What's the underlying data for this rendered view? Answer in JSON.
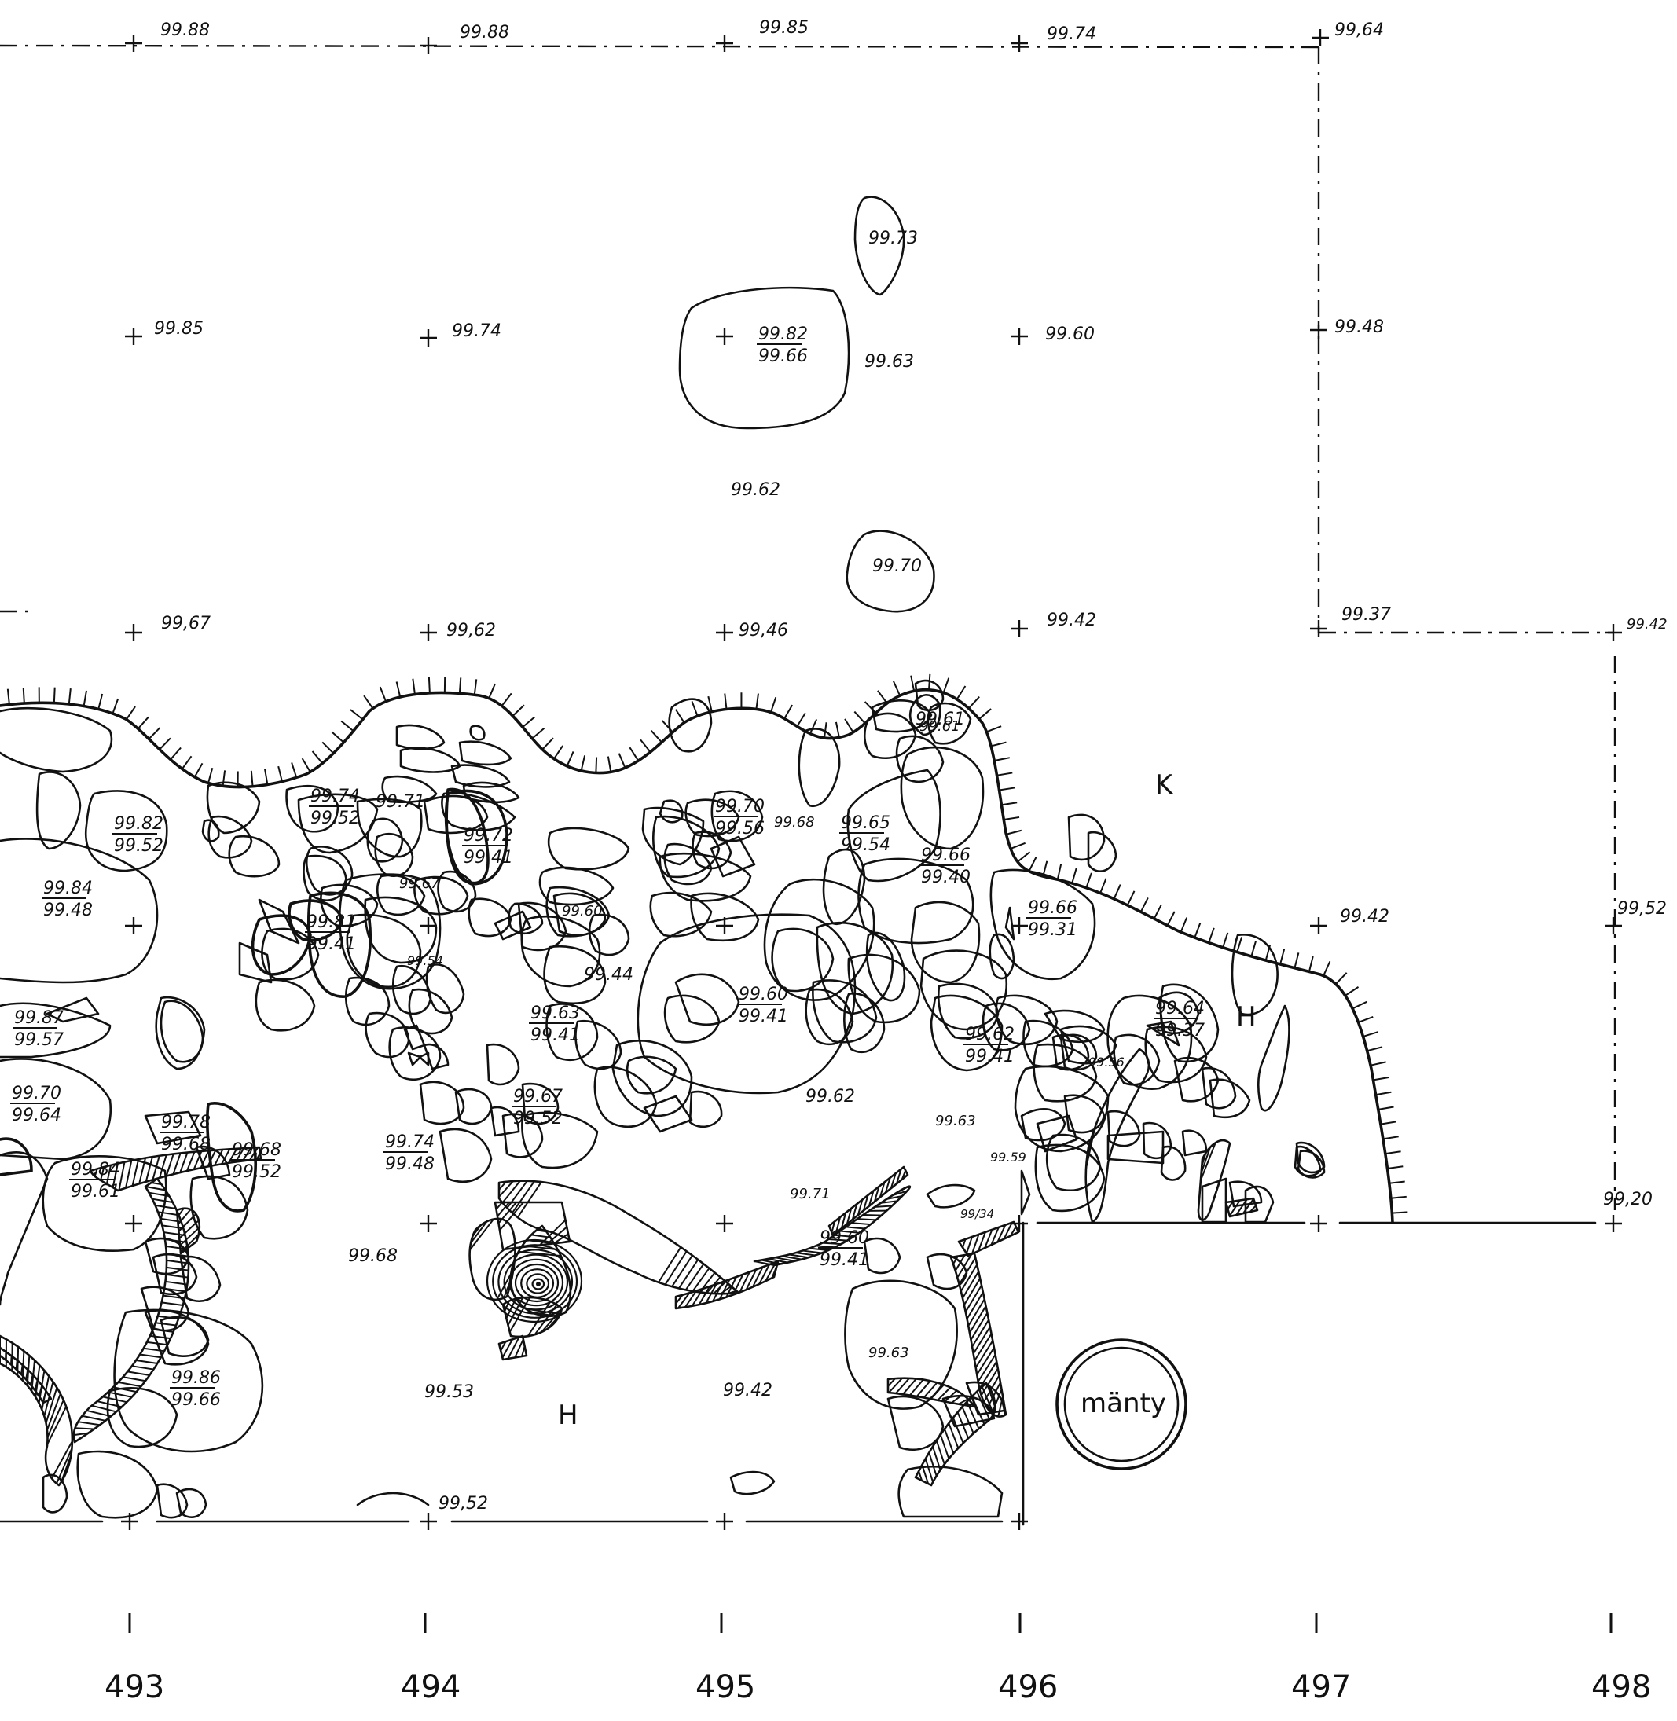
{
  "axis_labels": [
    "493",
    "494",
    "495",
    "496",
    "497",
    "498"
  ],
  "area_labels": {
    "K": "K",
    "H_right": "H",
    "H_bottom": "H",
    "tree": "mänty"
  },
  "top_row": [
    "99.88",
    "99.88",
    "99.85",
    "99.74",
    "99,64"
  ],
  "row2": [
    "99.85",
    "99.74",
    "99.60",
    "99.48"
  ],
  "row3": [
    "99,67",
    "99,62",
    "99,46",
    "99.42",
    "99.37",
    "99.42"
  ],
  "row4": [
    "99.42",
    "99,52"
  ],
  "row5": [
    "99,20"
  ],
  "surface": [
    "99.63",
    "99.62",
    "99.44",
    "99.54",
    "99.53",
    "99.42",
    "99,52",
    "99.56",
    "99.63",
    "99.59",
    "99.63",
    "99.68",
    "99.67",
    "99.61",
    "99.60",
    "99.68",
    "99.71",
    "99.62",
    "99/34"
  ],
  "stones": [
    {
      "top": "99.73"
    },
    {
      "top": "99.82",
      "bottom": "99.66"
    },
    {
      "top": "99.70"
    },
    {
      "top": "99.82",
      "bottom": "99.52"
    },
    {
      "top": "99.84",
      "bottom": "99.48"
    },
    {
      "top": "99.74",
      "bottom": "99.52"
    },
    {
      "top": "99.71"
    },
    {
      "top": "99.72",
      "bottom": "99.41"
    },
    {
      "top": "99.81",
      "bottom": "99.41"
    },
    {
      "top": "99.70",
      "bottom": "99.56"
    },
    {
      "top": "99.65",
      "bottom": "99.54"
    },
    {
      "top": "99.66",
      "bottom": "99.40"
    },
    {
      "top": "99.61"
    },
    {
      "top": "99.66",
      "bottom": "99.31"
    },
    {
      "top": "99.60",
      "bottom": "99.41"
    },
    {
      "top": "99.63",
      "bottom": "99.41"
    },
    {
      "top": "99.87",
      "bottom": "99.57"
    },
    {
      "top": "99.70",
      "bottom": "99.64"
    },
    {
      "top": "99.78",
      "bottom": "99.68"
    },
    {
      "top": "99.68",
      "bottom": "99.52"
    },
    {
      "top": "99.74",
      "bottom": "99.48"
    },
    {
      "top": "99.67",
      "bottom": "99.52"
    },
    {
      "top": "99.62",
      "bottom": "99.41"
    },
    {
      "top": "99.64",
      "bottom": "99.37"
    },
    {
      "top": "99.84",
      "bottom": "99.61"
    },
    {
      "top": "99.60",
      "bottom": "99.41"
    },
    {
      "top": "99.86",
      "bottom": "99.66"
    }
  ]
}
